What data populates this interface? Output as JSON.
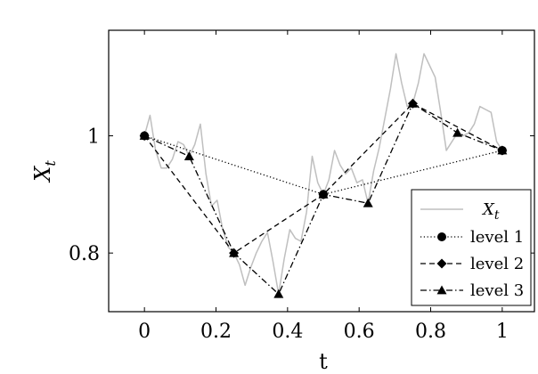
{
  "chart_data": {
    "type": "line",
    "title": "",
    "xlabel": "t",
    "ylabel_base": "X",
    "ylabel_sub": "t",
    "xlim": [
      -0.1,
      1.09
    ],
    "ylim": [
      0.7,
      1.18
    ],
    "xticks": [
      0,
      0.2,
      0.4,
      0.6,
      0.8,
      1
    ],
    "xtick_labels": [
      "0",
      "0.2",
      "0.4",
      "0.6",
      "0.8",
      "1"
    ],
    "yticks": [
      0.8,
      1
    ],
    "ytick_labels": [
      "0.8",
      "1"
    ],
    "grid": false,
    "legend_position": "bottom-right",
    "series": [
      {
        "name": "X",
        "name_sub": "t",
        "style": "solid",
        "marker": "none",
        "color": "#bfbfbf",
        "x": [
          0,
          0.0156,
          0.0312,
          0.0469,
          0.0625,
          0.0781,
          0.0938,
          0.1094,
          0.125,
          0.1406,
          0.1563,
          0.1719,
          0.1875,
          0.2031,
          0.2188,
          0.2344,
          0.25,
          0.2656,
          0.2813,
          0.2969,
          0.3125,
          0.3281,
          0.3438,
          0.3594,
          0.375,
          0.3906,
          0.4063,
          0.4219,
          0.4375,
          0.4531,
          0.4688,
          0.4844,
          0.5,
          0.5156,
          0.5313,
          0.5469,
          0.5625,
          0.5781,
          0.5938,
          0.6094,
          0.625,
          0.6406,
          0.6563,
          0.6719,
          0.6875,
          0.7031,
          0.7188,
          0.7344,
          0.75,
          0.7656,
          0.7813,
          0.7969,
          0.8125,
          0.8281,
          0.8438,
          0.8594,
          0.875,
          0.8906,
          0.9063,
          0.9219,
          0.9375,
          0.9531,
          0.9688,
          0.9844,
          1
        ],
        "values": [
          1.0,
          1.035,
          0.975,
          0.945,
          0.945,
          0.96,
          0.99,
          0.985,
          0.965,
          0.985,
          1.02,
          0.935,
          0.88,
          0.89,
          0.84,
          0.81,
          0.8,
          0.78,
          0.745,
          0.775,
          0.8,
          0.82,
          0.835,
          0.785,
          0.73,
          0.79,
          0.84,
          0.825,
          0.82,
          0.87,
          0.965,
          0.92,
          0.9,
          0.925,
          0.975,
          0.95,
          0.935,
          0.945,
          0.92,
          0.925,
          0.885,
          0.94,
          0.98,
          1.03,
          1.08,
          1.14,
          1.09,
          1.05,
          1.055,
          1.09,
          1.14,
          1.12,
          1.1,
          1.04,
          0.975,
          0.99,
          1.005,
          1.0,
          1.005,
          1.02,
          1.05,
          1.045,
          1.04,
          0.99,
          0.975
        ]
      },
      {
        "name": "level 1",
        "style": "dotted",
        "marker": "circle",
        "color": "#000000",
        "x": [
          0,
          0.5,
          1
        ],
        "values": [
          1.0,
          0.9,
          0.975
        ]
      },
      {
        "name": "level 2",
        "style": "dashed",
        "marker": "diamond",
        "color": "#000000",
        "x": [
          0,
          0.25,
          0.5,
          0.75,
          1
        ],
        "values": [
          1.0,
          0.8,
          0.9,
          1.055,
          0.975
        ]
      },
      {
        "name": "level 3",
        "style": "dashdot",
        "marker": "triangle",
        "color": "#000000",
        "x": [
          0,
          0.125,
          0.25,
          0.375,
          0.5,
          0.625,
          0.75,
          0.875,
          1
        ],
        "values": [
          1.0,
          0.965,
          0.8,
          0.73,
          0.9,
          0.885,
          1.055,
          1.005,
          0.975
        ]
      }
    ]
  }
}
